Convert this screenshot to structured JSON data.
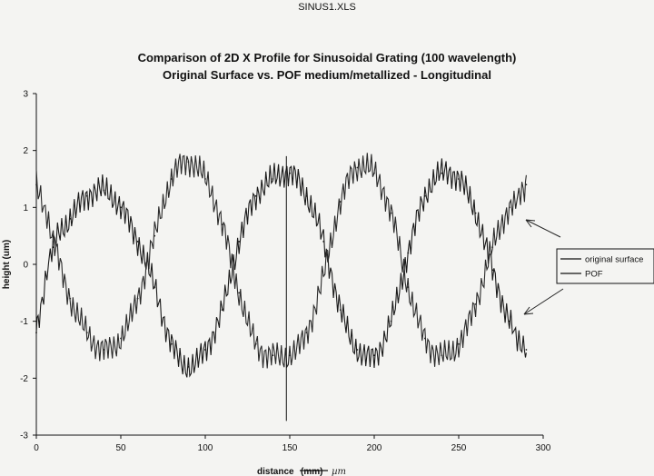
{
  "file_header": "SINUS1.XLS",
  "chart_data": {
    "type": "line",
    "title_line1": "Comparison of 2D X Profile for Sinusoidal Grating (100 wavelength)",
    "title_line2": "Original Surface vs. POF medium/metallized - Longitudinal",
    "xlabel": "distance",
    "xlabel_strikethrough": "(mm)",
    "xlabel_handwritten": "µm",
    "ylabel": "height (um)",
    "xlim": [
      0,
      300
    ],
    "ylim": [
      -3,
      3
    ],
    "xticks": [
      0,
      50,
      100,
      150,
      200,
      250,
      300
    ],
    "yticks": [
      3,
      2,
      1,
      0,
      -1,
      -2,
      -3
    ],
    "grid": false,
    "legend_position": "right",
    "legend": [
      "original surface",
      "POF"
    ],
    "series": [
      {
        "name": "original surface",
        "x": [
          0,
          10,
          20,
          30,
          40,
          50,
          60,
          70,
          80,
          90,
          100,
          110,
          120,
          130,
          140,
          150,
          160,
          170,
          180,
          190,
          200,
          210,
          220,
          230,
          240,
          250,
          260,
          270,
          280,
          290
        ],
        "y": [
          -1.2,
          0.3,
          0.8,
          1.2,
          1.3,
          1.0,
          0.4,
          -0.4,
          -1.4,
          -1.8,
          -1.5,
          -0.8,
          0.4,
          1.2,
          1.5,
          1.6,
          1.2,
          0.4,
          -0.8,
          -1.5,
          -1.6,
          -1.0,
          0.2,
          1.2,
          1.6,
          1.5,
          0.9,
          -0.1,
          -1.0,
          -1.5
        ]
      },
      {
        "name": "POF",
        "x": [
          0,
          10,
          20,
          30,
          40,
          50,
          60,
          70,
          80,
          90,
          100,
          110,
          120,
          130,
          140,
          150,
          160,
          170,
          180,
          190,
          200,
          210,
          220,
          230,
          240,
          250,
          260,
          270,
          280,
          290
        ],
        "y": [
          1.4,
          0.4,
          -0.6,
          -1.2,
          -1.5,
          -1.3,
          -0.6,
          0.5,
          1.5,
          1.8,
          1.5,
          0.7,
          -0.5,
          -1.4,
          -1.6,
          -1.6,
          -1.2,
          -0.2,
          1.1,
          1.7,
          1.6,
          0.9,
          -0.4,
          -1.3,
          -1.6,
          -1.4,
          -0.7,
          0.3,
          1.0,
          1.4
        ]
      }
    ],
    "annotation_arrows": 2
  }
}
